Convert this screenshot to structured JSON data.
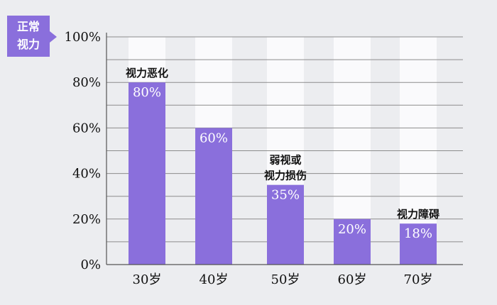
{
  "y_badge": {
    "line1": "正常",
    "line2": "视力"
  },
  "colors": {
    "background": "#ecedf0",
    "bar": "#8a6fdc",
    "bar_background": "#fafafc",
    "grid": "#8c8c8c",
    "badge": "#8a6fdc"
  },
  "chart_data": {
    "type": "bar",
    "categories": [
      "30岁",
      "40岁",
      "50岁",
      "60岁",
      "70岁"
    ],
    "values": [
      80,
      60,
      35,
      20,
      18
    ],
    "value_labels": [
      "80%",
      "60%",
      "35%",
      "20%",
      "18%"
    ],
    "ylim": [
      0,
      100
    ],
    "y_ticks": [
      0,
      20,
      40,
      60,
      80,
      100
    ],
    "y_tick_labels": [
      "0%",
      "20%",
      "40%",
      "60%",
      "80%",
      "100%"
    ],
    "grid": true,
    "annotations": [
      {
        "category_index": 0,
        "lines": [
          "视力恶化"
        ]
      },
      {
        "category_index": 2,
        "lines": [
          "弱视或",
          "视力损伤"
        ]
      },
      {
        "category_index": 4,
        "lines": [
          "视力障碍"
        ]
      }
    ]
  }
}
